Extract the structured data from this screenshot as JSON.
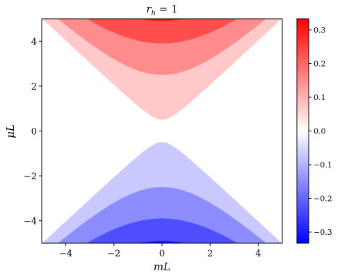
{
  "chart_data": {
    "type": "contourf",
    "title": "r_h = 1",
    "title_parts": {
      "base": "r",
      "sub": "h",
      "rest": " = 1"
    },
    "xlabel": "mL",
    "ylabel": "μL",
    "xlim": [
      -5,
      5
    ],
    "ylim": [
      -5,
      5
    ],
    "x_ticks": [
      -4,
      -2,
      0,
      2,
      4
    ],
    "y_ticks": [
      -4,
      -2,
      0,
      2,
      4
    ],
    "x_tick_labels": [
      "−4",
      "−2",
      "0",
      "2",
      "4"
    ],
    "y_tick_labels": [
      "−4",
      "−2",
      "0",
      "2",
      "4"
    ],
    "colormap": "bwr",
    "colorbar": {
      "range": [
        -0.333,
        0.333
      ],
      "ticks": [
        -0.3,
        -0.2,
        -0.1,
        0.0,
        0.1,
        0.2,
        0.3
      ],
      "tick_labels": [
        "−0.3",
        "−0.2",
        "−0.1",
        "0.0",
        "0.1",
        "0.2",
        "0.3"
      ]
    },
    "contour_levels": [
      0.0,
      0.5,
      2.5,
      3.9,
      4.9
    ],
    "level_values": [
      0.0,
      0.05,
      0.13,
      0.21,
      0.29
    ],
    "level_colors_pos": [
      "#ffffff",
      "#ffc9c9",
      "#ff8c8c",
      "#ff4e4e",
      "#ff1a1a"
    ],
    "level_colors_neg": [
      "#ffffff",
      "#c9c9ff",
      "#8c8cff",
      "#4e4eff",
      "#1a1aff"
    ],
    "grid": false
  }
}
